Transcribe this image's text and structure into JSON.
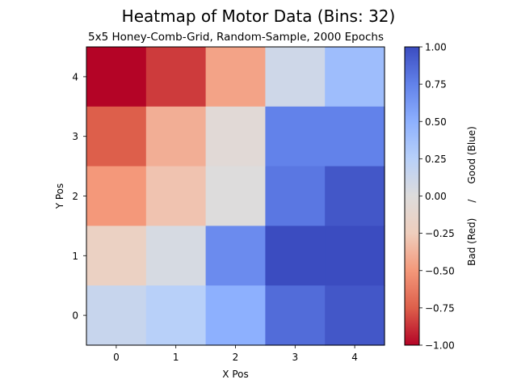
{
  "chart_data": {
    "type": "heatmap",
    "title": "Heatmap of Motor Data (Bins: 32)",
    "subtitle": "5x5 Honey-Comb-Grid, Random-Sample, 2000 Epochs",
    "xlabel": "X Pos",
    "ylabel": "Y Pos",
    "colorbar_label": "Bad (Red)     /     Good (Blue)",
    "colormap": "coolwarm",
    "vmin": -1.0,
    "vmax": 1.0,
    "x": [
      0,
      1,
      2,
      3,
      4
    ],
    "y": [
      0,
      1,
      2,
      3,
      4
    ],
    "x_ticks": [
      "0",
      "1",
      "2",
      "3",
      "4"
    ],
    "y_ticks": [
      "0",
      "1",
      "2",
      "3",
      "4"
    ],
    "colorbar_ticks": [
      "1.00",
      "0.75",
      "0.50",
      "0.25",
      "0.00",
      "−0.25",
      "−0.50",
      "−0.75",
      "−1.00"
    ],
    "colorbar_tick_values": [
      1.0,
      0.75,
      0.5,
      0.25,
      0.0,
      -0.25,
      -0.5,
      -0.75,
      -1.0
    ],
    "values_by_row_from_top": [
      [
        -1.0,
        -0.85,
        -0.45,
        0.1,
        0.4
      ],
      [
        -0.75,
        -0.4,
        -0.05,
        0.75,
        0.75
      ],
      [
        -0.5,
        -0.3,
        0.0,
        0.8,
        0.95
      ],
      [
        -0.2,
        0.05,
        0.7,
        1.0,
        1.0
      ],
      [
        0.15,
        0.25,
        0.5,
        0.85,
        0.95
      ]
    ],
    "grid": false
  }
}
